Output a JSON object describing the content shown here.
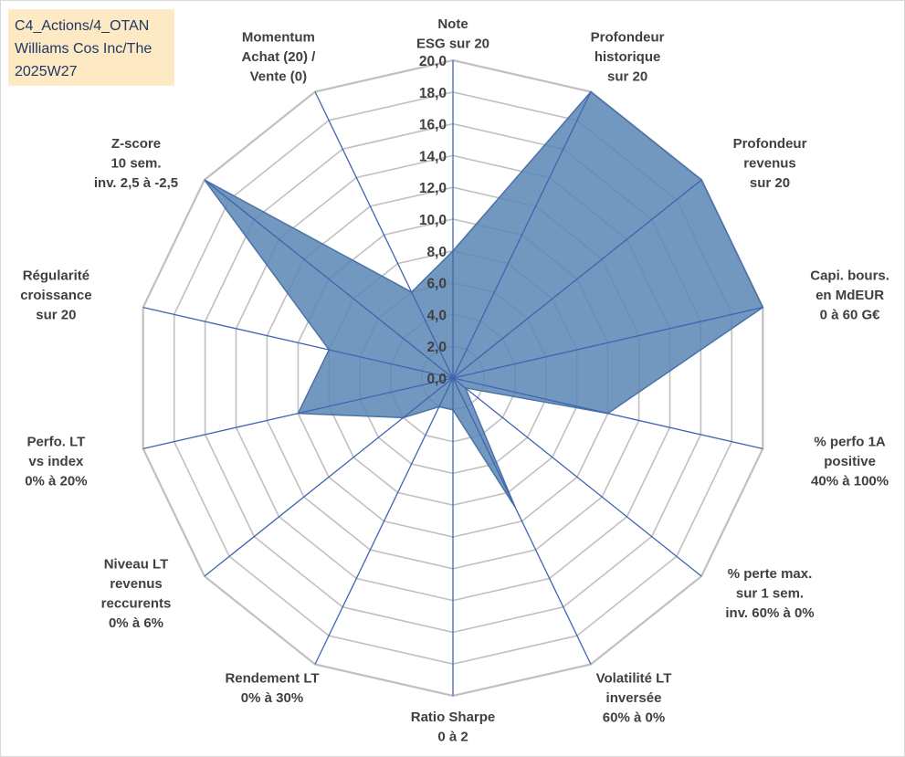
{
  "header": {
    "lines": [
      "C4_Actions/4_OTAN",
      "Williams Cos Inc/The",
      "2025W27"
    ]
  },
  "chart_data": {
    "type": "radar",
    "title": "",
    "rmin": 0,
    "rmax": 20,
    "tick_step": 2,
    "tick_labels": [
      "0,0",
      "2,0",
      "4,0",
      "6,0",
      "8,0",
      "10,0",
      "12,0",
      "14,0",
      "16,0",
      "18,0",
      "20,0"
    ],
    "grid": true,
    "axes": [
      {
        "label": [
          "Note",
          "ESG sur 20"
        ],
        "value": 8.0
      },
      {
        "label": [
          "Profondeur",
          "historique",
          "sur 20"
        ],
        "value": 20.0
      },
      {
        "label": [
          "Profondeur",
          "revenus",
          "sur 20"
        ],
        "value": 20.0
      },
      {
        "label": [
          "Capi. bours.",
          "en MdEUR",
          "0 à 60 G€"
        ],
        "value": 20.0
      },
      {
        "label": [
          "% perfo 1A",
          "positive",
          "40% à 100%"
        ],
        "value": 10.0
      },
      {
        "label": [
          "% perte max.",
          "sur 1 sem.",
          "inv. 60% à 0%"
        ],
        "value": 1.0
      },
      {
        "label": [
          "Volatilité LT",
          "inversée",
          "60% à 0%"
        ],
        "value": 9.0
      },
      {
        "label": [
          "Ratio Sharpe",
          "0 à 2"
        ],
        "value": 2.0
      },
      {
        "label": [
          "Rendement LT",
          "0% à 30%"
        ],
        "value": 2.0
      },
      {
        "label": [
          "Niveau LT",
          "revenus",
          "reccurents",
          "0% à 6%"
        ],
        "value": 4.0
      },
      {
        "label": [
          "Perfo. LT",
          "vs index",
          "0% à 20%"
        ],
        "value": 10.0
      },
      {
        "label": [
          "Régularité",
          "croissance",
          "sur 20"
        ],
        "value": 8.0
      },
      {
        "label": [
          "Z-score",
          "10 sem.",
          "inv. 2,5 à -2,5"
        ],
        "value": 20.0
      },
      {
        "label": [
          "Momentum",
          "Achat (20) /",
          "Vente (0)"
        ],
        "value": 6.0
      }
    ],
    "colors": {
      "area_fill": "#5b86b5",
      "area_stroke": "#4a72a8",
      "grid": "#c0c0c0",
      "spoke": "#3f64b0"
    }
  }
}
